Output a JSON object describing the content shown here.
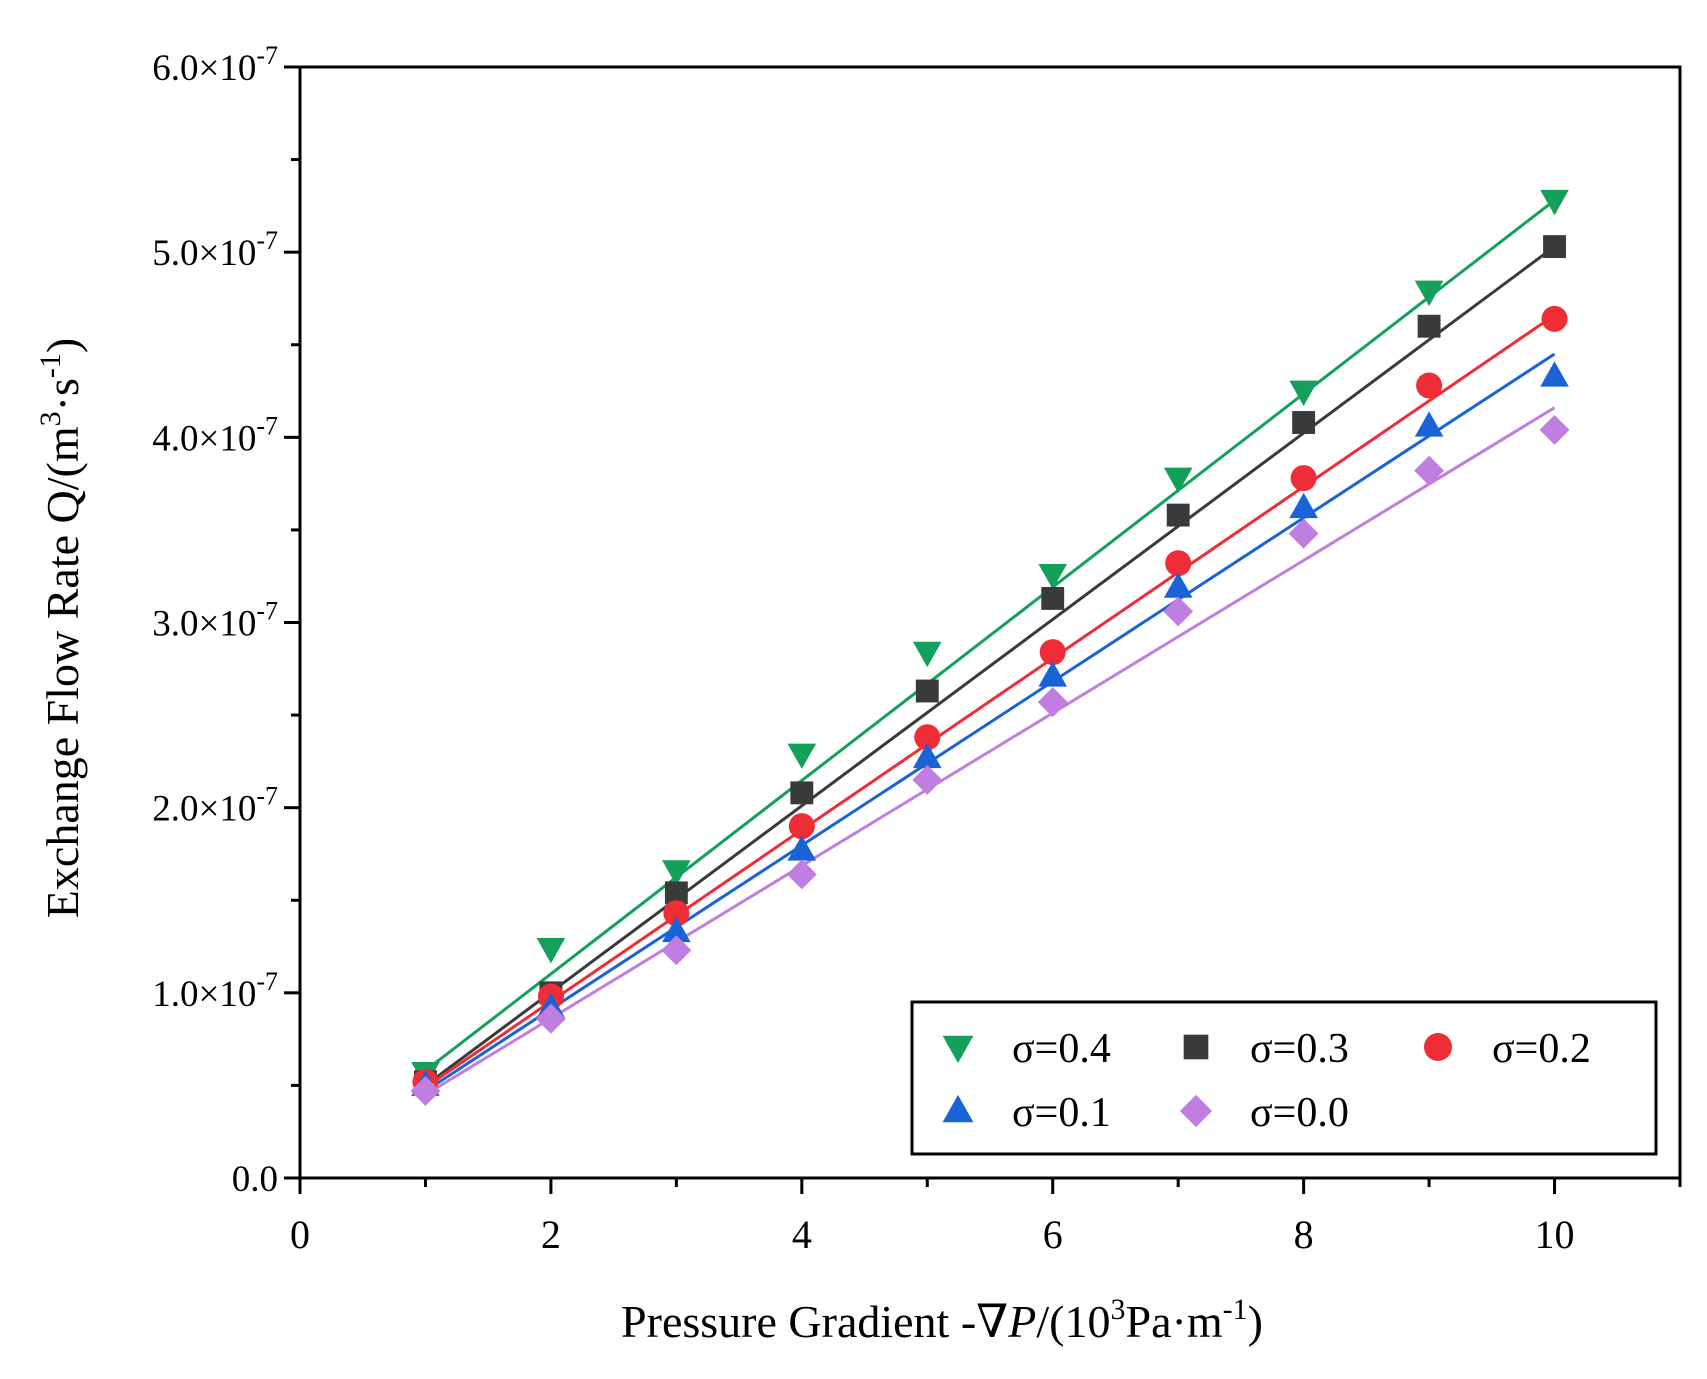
{
  "chart_data": {
    "type": "scatter",
    "xlabel": {
      "prefix": "Pressure Gradient -∇",
      "var": "P",
      "mid": "/(10",
      "sup": "3",
      "mid2": "Pa·m",
      "sup2": "-1",
      "end": ")"
    },
    "ylabel": {
      "prefix": "Exchange Flow Rate Q/(m",
      "sup": "3",
      "mid": "·s",
      "sup2": "-1",
      "end": ")"
    },
    "xlim": [
      0,
      11
    ],
    "ylim": [
      0,
      6e-07
    ],
    "x_ticks": [
      0,
      2,
      4,
      6,
      8,
      10
    ],
    "x_tick_labels": [
      "0",
      "2",
      "4",
      "6",
      "8",
      "10"
    ],
    "y_ticks": [
      0,
      1e-07,
      2e-07,
      3e-07,
      4e-07,
      5e-07,
      6e-07
    ],
    "y_tick_labels": [
      {
        "mant": "0.0",
        "exp": ""
      },
      {
        "mant": "1.0×10",
        "exp": "-7"
      },
      {
        "mant": "2.0×10",
        "exp": "-7"
      },
      {
        "mant": "3.0×10",
        "exp": "-7"
      },
      {
        "mant": "4.0×10",
        "exp": "-7"
      },
      {
        "mant": "5.0×10",
        "exp": "-7"
      },
      {
        "mant": "6.0×10",
        "exp": "-7"
      }
    ],
    "grid": false,
    "legend_position": "bottom-right",
    "x": [
      1,
      2,
      3,
      4,
      5,
      6,
      7,
      8,
      9,
      10
    ],
    "series": [
      {
        "name": "σ=0.4",
        "marker": "triangle-down",
        "color": "#12a05a",
        "values": [
          5.7e-08,
          1.24e-07,
          1.66e-07,
          2.29e-07,
          2.84e-07,
          3.26e-07,
          3.78e-07,
          4.25e-07,
          4.79e-07,
          5.28e-07
        ],
        "fit": [
          5.8e-08,
          5.28e-07
        ]
      },
      {
        "name": "σ=0.3",
        "marker": "square",
        "color": "#3a3a3a",
        "values": [
          5.2e-08,
          1e-07,
          1.54e-07,
          2.08e-07,
          2.63e-07,
          3.13e-07,
          3.58e-07,
          4.08e-07,
          4.6e-07,
          5.03e-07
        ],
        "fit": [
          5e-08,
          5.03e-07
        ]
      },
      {
        "name": "σ=0.2",
        "marker": "circle",
        "color": "#ee2d36",
        "values": [
          5.2e-08,
          9.8e-08,
          1.43e-07,
          1.9e-07,
          2.38e-07,
          2.84e-07,
          3.32e-07,
          3.78e-07,
          4.28e-07,
          4.64e-07
        ],
        "fit": [
          4.9e-08,
          4.66e-07
        ]
      },
      {
        "name": "σ=0.1",
        "marker": "triangle-up",
        "color": "#1a63d6",
        "values": [
          5e-08,
          9.2e-08,
          1.33e-07,
          1.77e-07,
          2.27e-07,
          2.71e-07,
          3.19e-07,
          3.62e-07,
          4.06e-07,
          4.33e-07
        ],
        "fit": [
          4.7e-08,
          4.45e-07
        ]
      },
      {
        "name": "σ=0.0",
        "marker": "diamond",
        "color": "#c07ee0",
        "values": [
          4.7e-08,
          8.6e-08,
          1.23e-07,
          1.64e-07,
          2.15e-07,
          2.57e-07,
          3.06e-07,
          3.48e-07,
          3.82e-07,
          4.04e-07
        ],
        "fit": [
          4.5e-08,
          4.16e-07
        ]
      }
    ]
  }
}
